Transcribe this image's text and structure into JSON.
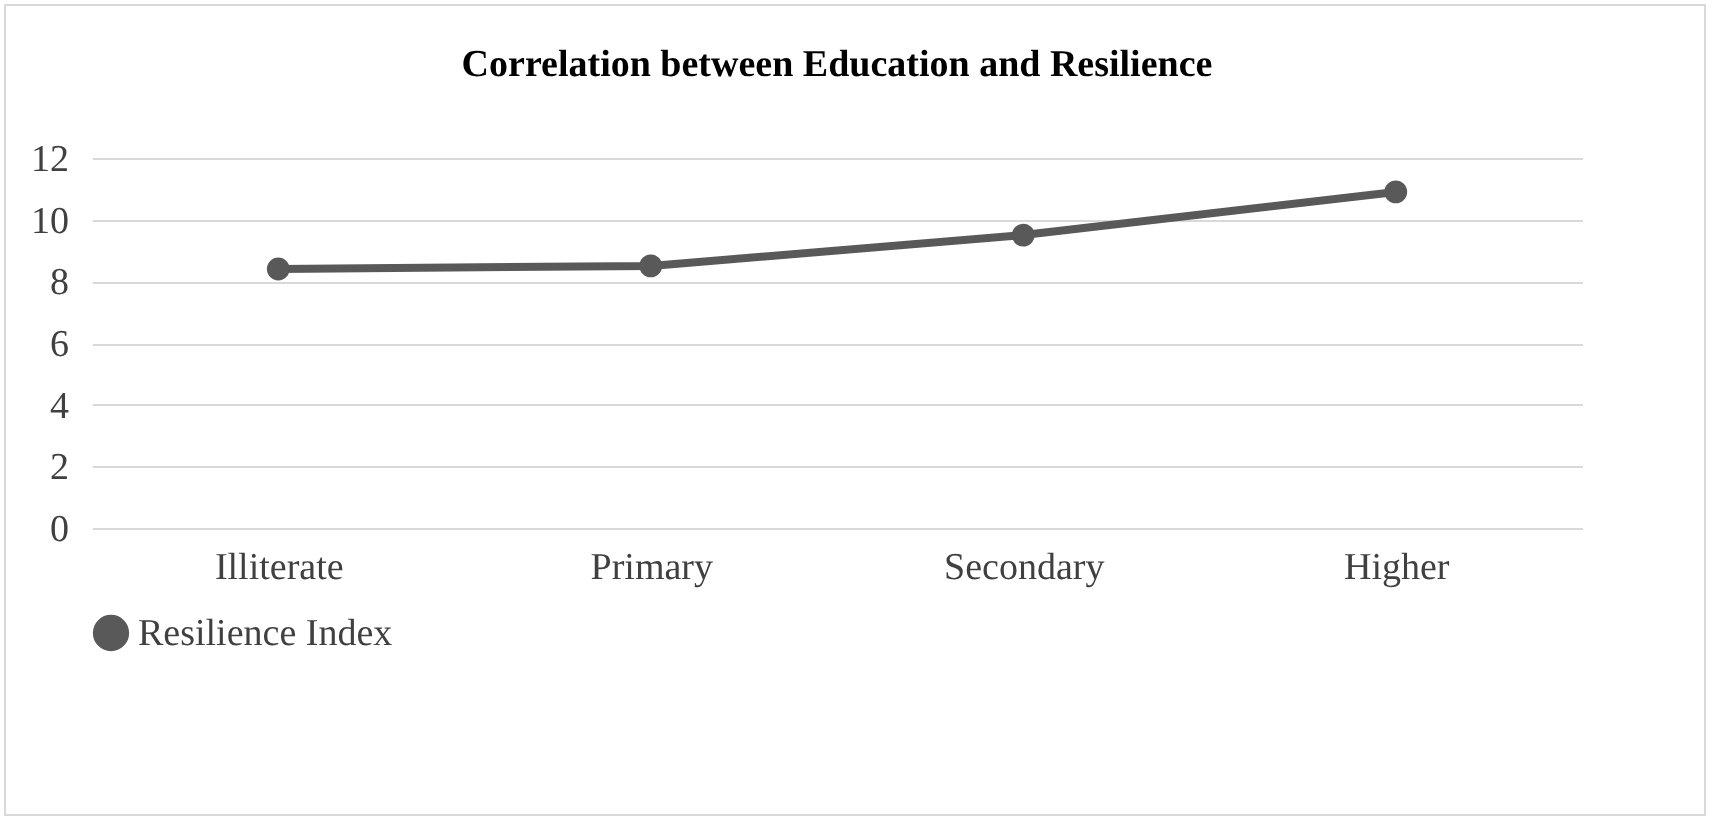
{
  "chart_data": {
    "type": "line",
    "title": "Correlation between Education and Resilience",
    "categories": [
      "Illiterate",
      "Primary",
      "Secondary",
      "Higher"
    ],
    "series": [
      {
        "name": "Resilience Index",
        "color": "#595959",
        "values": [
          8.4,
          8.5,
          9.5,
          10.9
        ]
      }
    ],
    "ylim": [
      0,
      12
    ],
    "yticks": [
      0,
      2,
      4,
      6,
      8,
      10,
      12
    ],
    "grid": "y",
    "legend": "bottom",
    "marker": "circle",
    "line_style": "solid"
  }
}
